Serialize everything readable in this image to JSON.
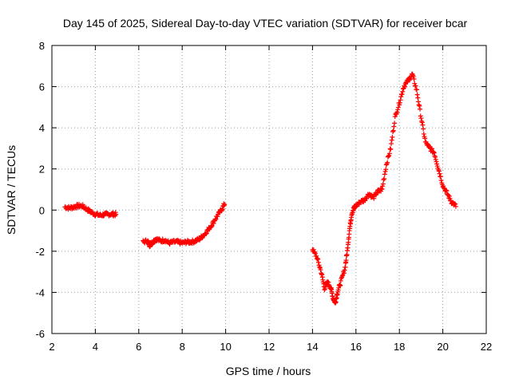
{
  "chart_data": {
    "type": "scatter",
    "title": "Day 145 of 2025, Sidereal Day-to-day VTEC variation (SDTVAR) for receiver bcar",
    "xlabel": "GPS time / hours",
    "ylabel": "SDTVAR / TECUs",
    "xlim": [
      2,
      22
    ],
    "ylim": [
      -6,
      8
    ],
    "xticks": [
      "2",
      "4",
      "6",
      "8",
      "10",
      "12",
      "14",
      "16",
      "18",
      "20",
      "22"
    ],
    "yticks": [
      "-6",
      "-4",
      "-2",
      "0",
      "2",
      "4",
      "6",
      "8"
    ],
    "grid": true,
    "marker": "+",
    "series_color": "#ff0000",
    "segments": [
      {
        "name": "segment-1",
        "x": [
          2.6,
          2.8,
          3.0,
          3.2,
          3.4,
          3.6,
          3.8,
          4.0,
          4.2,
          4.4,
          4.6,
          4.8,
          4.95
        ],
        "y": [
          0.15,
          0.1,
          0.15,
          0.2,
          0.2,
          0.05,
          -0.1,
          -0.2,
          -0.25,
          -0.22,
          -0.2,
          -0.2,
          -0.2
        ]
      },
      {
        "name": "segment-2",
        "x": [
          6.2,
          6.4,
          6.5,
          6.6,
          6.7,
          6.8,
          7.0,
          7.2,
          7.4,
          7.6,
          7.8,
          8.0,
          8.2,
          8.4,
          8.6,
          8.8,
          9.0,
          9.2,
          9.4,
          9.6,
          9.8,
          9.95
        ],
        "y": [
          -1.55,
          -1.5,
          -1.7,
          -1.6,
          -1.5,
          -1.4,
          -1.5,
          -1.45,
          -1.6,
          -1.55,
          -1.55,
          -1.6,
          -1.55,
          -1.55,
          -1.5,
          -1.4,
          -1.2,
          -0.95,
          -0.65,
          -0.3,
          0.0,
          0.3
        ]
      },
      {
        "name": "segment-3",
        "x": [
          14.0,
          14.2,
          14.4,
          14.55,
          14.7,
          14.85,
          14.95,
          15.05,
          15.15,
          15.3,
          15.5,
          15.6,
          15.7,
          15.8,
          15.9,
          16.0,
          16.2,
          16.4,
          16.6,
          16.8,
          17.0,
          17.2,
          17.4,
          17.6,
          17.8,
          18.0,
          18.2,
          18.4,
          18.6,
          18.8,
          19.0,
          19.2,
          19.4,
          19.6,
          19.8,
          20.0,
          20.2,
          20.4,
          20.6
        ],
        "y": [
          -1.9,
          -2.3,
          -3.0,
          -3.8,
          -3.5,
          -3.8,
          -4.3,
          -4.5,
          -4.0,
          -3.5,
          -2.8,
          -2.0,
          -1.0,
          -0.2,
          0.1,
          0.2,
          0.4,
          0.5,
          0.8,
          0.6,
          0.9,
          1.0,
          2.2,
          3.0,
          4.5,
          5.2,
          6.0,
          6.3,
          6.6,
          5.8,
          4.5,
          3.3,
          3.0,
          2.8,
          2.0,
          1.2,
          0.8,
          0.4,
          0.2
        ]
      }
    ]
  }
}
